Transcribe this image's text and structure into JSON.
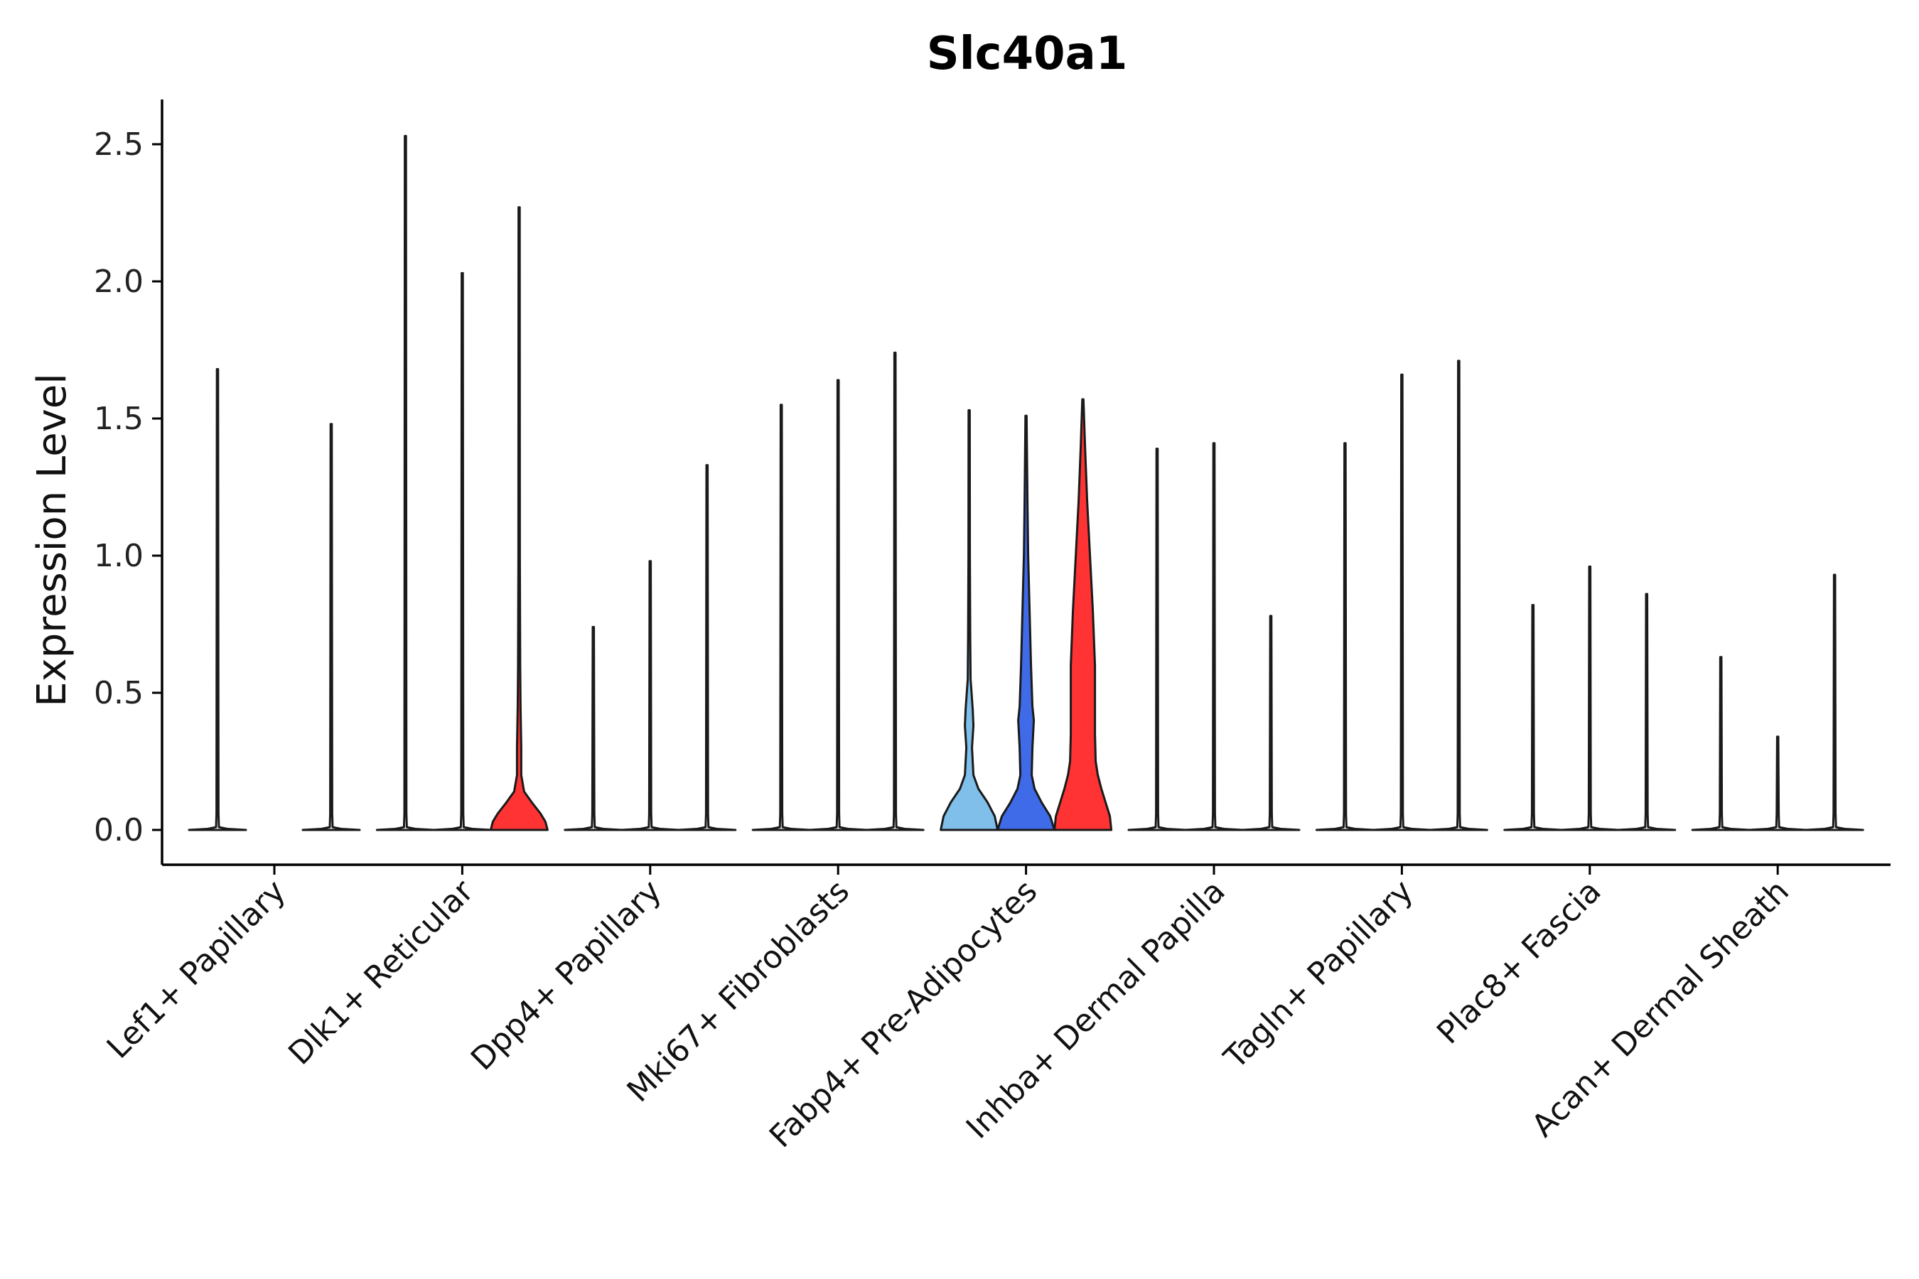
{
  "chart_data": {
    "type": "violin",
    "title": "Slc40a1",
    "xlabel": "",
    "ylabel": "Expression Level",
    "ylim": [
      -0.12,
      2.65
    ],
    "yticks": [
      "0.0",
      "0.5",
      "1.0",
      "1.5",
      "2.0",
      "2.5"
    ],
    "ytick_values": [
      0.0,
      0.5,
      1.0,
      1.5,
      2.0,
      2.5
    ],
    "categories": [
      "Lef1+ Papillary",
      "Dlk1+ Reticular",
      "Dpp4+ Papillary",
      "Mki67+ Fibroblasts",
      "Fabp4+ Pre-Adipocytes",
      "Inhba+ Dermal Papilla",
      "Tagln+ Papillary",
      "Plac8+ Fascia",
      "Acan+ Dermal Sheath"
    ],
    "series_colors": [
      "#7fbfea",
      "#3f6ae8",
      "#ff3333"
    ],
    "violins": [
      {
        "category": 0,
        "max": [
          1.68,
          null,
          1.48
        ],
        "filled": [
          false,
          false,
          false
        ]
      },
      {
        "category": 1,
        "max": [
          2.53,
          2.03,
          2.27
        ],
        "filled": [
          false,
          false,
          true
        ]
      },
      {
        "category": 2,
        "max": [
          0.74,
          0.98,
          1.33
        ],
        "filled": [
          false,
          false,
          false
        ]
      },
      {
        "category": 3,
        "max": [
          1.55,
          1.64,
          1.74
        ],
        "filled": [
          false,
          false,
          false
        ]
      },
      {
        "category": 4,
        "max": [
          1.53,
          1.51,
          1.57
        ],
        "filled": [
          true,
          true,
          true
        ]
      },
      {
        "category": 5,
        "max": [
          1.39,
          1.41,
          0.78
        ],
        "filled": [
          false,
          false,
          false
        ]
      },
      {
        "category": 6,
        "max": [
          1.41,
          1.66,
          1.71
        ],
        "filled": [
          false,
          false,
          false
        ]
      },
      {
        "category": 7,
        "max": [
          0.82,
          0.96,
          0.86
        ],
        "filled": [
          false,
          false,
          false
        ]
      },
      {
        "category": 8,
        "max": [
          0.63,
          0.34,
          0.93
        ],
        "filled": [
          false,
          false,
          false
        ]
      }
    ]
  }
}
